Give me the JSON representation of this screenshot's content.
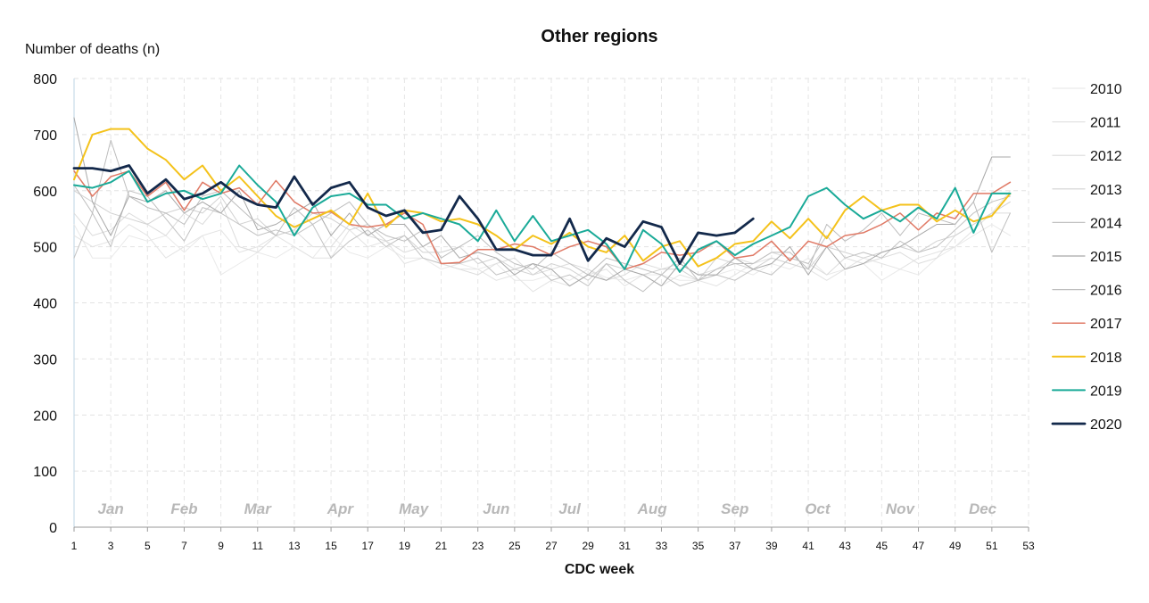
{
  "chart_data": {
    "type": "line",
    "title": "Other regions",
    "ylabel": "Number of deaths (n)",
    "xlabel": "CDC week",
    "xlim": [
      1,
      53
    ],
    "ylim": [
      0,
      800
    ],
    "x_ticks": [
      1,
      3,
      5,
      7,
      9,
      11,
      13,
      15,
      17,
      19,
      21,
      23,
      25,
      27,
      29,
      31,
      33,
      35,
      37,
      39,
      41,
      43,
      45,
      47,
      49,
      51,
      53
    ],
    "y_ticks": [
      0,
      100,
      200,
      300,
      400,
      500,
      600,
      700,
      800
    ],
    "grid": true,
    "legend_position": "right",
    "months": [
      {
        "label": "Jan",
        "week": 3
      },
      {
        "label": "Feb",
        "week": 7
      },
      {
        "label": "Mar",
        "week": 11
      },
      {
        "label": "Apr",
        "week": 15.5
      },
      {
        "label": "May",
        "week": 19.5
      },
      {
        "label": "Jun",
        "week": 24
      },
      {
        "label": "Jul",
        "week": 28
      },
      {
        "label": "Aug",
        "week": 32.5
      },
      {
        "label": "Sep",
        "week": 37
      },
      {
        "label": "Oct",
        "week": 41.5
      },
      {
        "label": "Nov",
        "week": 46
      },
      {
        "label": "Dec",
        "week": 50.5
      }
    ],
    "series": [
      {
        "name": "2010",
        "color": "#e9e9e9",
        "width": 1,
        "start_week": 1,
        "values": [
          540,
          480,
          480,
          520,
          510,
          520,
          490,
          520,
          450,
          470,
          490,
          480,
          500,
          480,
          520,
          490,
          480,
          500,
          480,
          480,
          460,
          470,
          460,
          470,
          440,
          440,
          450,
          440,
          460,
          445,
          440,
          450,
          450,
          440,
          440,
          450,
          460,
          450,
          470,
          460,
          480,
          450,
          460,
          470,
          440,
          460,
          450,
          480,
          500,
          520,
          540,
          520
        ]
      },
      {
        "name": "2011",
        "color": "#e3e3e3",
        "width": 1,
        "start_week": 1,
        "values": [
          520,
          500,
          510,
          540,
          520,
          480,
          500,
          520,
          530,
          490,
          500,
          520,
          500,
          480,
          480,
          530,
          500,
          510,
          470,
          480,
          470,
          460,
          460,
          440,
          450,
          420,
          440,
          430,
          450,
          460,
          430,
          450,
          430,
          450,
          440,
          430,
          450,
          470,
          480,
          470,
          460,
          440,
          460,
          480,
          470,
          460,
          480,
          490,
          500,
          530,
          560,
          600
        ]
      },
      {
        "name": "2012",
        "color": "#dcdcdc",
        "width": 1,
        "start_week": 1,
        "values": [
          560,
          520,
          530,
          560,
          540,
          520,
          560,
          540,
          580,
          500,
          490,
          520,
          530,
          500,
          500,
          540,
          520,
          510,
          490,
          500,
          470,
          460,
          450,
          470,
          480,
          450,
          460,
          470,
          460,
          440,
          450,
          470,
          460,
          470,
          450,
          460,
          480,
          470,
          490,
          480,
          470,
          450,
          480,
          470,
          480,
          490,
          470,
          480,
          520,
          540,
          560,
          560
        ]
      },
      {
        "name": "2013",
        "color": "#d2d2d2",
        "width": 1,
        "start_week": 1,
        "values": [
          600,
          580,
          560,
          550,
          540,
          560,
          570,
          560,
          590,
          540,
          550,
          520,
          530,
          560,
          550,
          530,
          540,
          510,
          520,
          490,
          490,
          500,
          470,
          480,
          460,
          450,
          470,
          460,
          440,
          470,
          460,
          450,
          460,
          460,
          440,
          480,
          470,
          460,
          480,
          470,
          460,
          500,
          490,
          480,
          490,
          500,
          490,
          510,
          520,
          540,
          560,
          580
        ]
      },
      {
        "name": "2014",
        "color": "#c2c2c2",
        "width": 1,
        "start_week": 1,
        "values": [
          480,
          560,
          500,
          600,
          590,
          550,
          510,
          570,
          560,
          540,
          520,
          530,
          520,
          540,
          480,
          510,
          530,
          500,
          520,
          480,
          470,
          470,
          480,
          450,
          460,
          470,
          440,
          450,
          430,
          470,
          440,
          420,
          450,
          430,
          440,
          450,
          440,
          460,
          450,
          480,
          470,
          520,
          480,
          490,
          480,
          510,
          490,
          500,
          530,
          560,
          580,
          590
        ]
      },
      {
        "name": "2015",
        "color": "#a8a8a8",
        "width": 1,
        "start_week": 1,
        "values": [
          730,
          580,
          520,
          590,
          580,
          600,
          560,
          580,
          560,
          600,
          530,
          540,
          560,
          580,
          520,
          560,
          520,
          540,
          540,
          500,
          520,
          480,
          490,
          480,
          450,
          470,
          460,
          430,
          450,
          440,
          460,
          450,
          430,
          470,
          450,
          450,
          480,
          460,
          470,
          500,
          450,
          500,
          460,
          470,
          490,
          500,
          520,
          540,
          540,
          580,
          660,
          660
        ]
      },
      {
        "name": "2016",
        "color": "#bdbdbd",
        "width": 1,
        "start_week": 1,
        "values": [
          610,
          560,
          690,
          590,
          570,
          560,
          540,
          590,
          600,
          570,
          540,
          520,
          570,
          540,
          560,
          580,
          540,
          520,
          510,
          530,
          480,
          500,
          520,
          490,
          470,
          460,
          490,
          470,
          450,
          480,
          470,
          460,
          450,
          480,
          440,
          460,
          470,
          470,
          490,
          490,
          460,
          540,
          510,
          530,
          560,
          520,
          560,
          550,
          540,
          580,
          490,
          560
        ]
      },
      {
        "name": "2017",
        "color": "#e07a66",
        "width": 1.5,
        "start_week": 1,
        "values": [
          635,
          590,
          625,
          635,
          590,
          615,
          565,
          615,
          595,
          605,
          575,
          618,
          580,
          560,
          562,
          540,
          535,
          540,
          560,
          540,
          470,
          472,
          495,
          495,
          505,
          500,
          485,
          500,
          510,
          500,
          460,
          470,
          490,
          485,
          490,
          510,
          480,
          485,
          510,
          475,
          510,
          500,
          520,
          525,
          540,
          560,
          530,
          560,
          550,
          595,
          595,
          615
        ]
      },
      {
        "name": "2018",
        "color": "#f4c21b",
        "width": 2,
        "start_week": 1,
        "values": [
          620,
          700,
          710,
          710,
          675,
          655,
          620,
          645,
          600,
          625,
          590,
          555,
          535,
          550,
          565,
          540,
          595,
          535,
          565,
          560,
          545,
          550,
          540,
          520,
          495,
          520,
          505,
          525,
          500,
          490,
          520,
          475,
          500,
          510,
          465,
          480,
          505,
          510,
          545,
          515,
          550,
          515,
          565,
          590,
          565,
          575,
          575,
          545,
          565,
          545,
          555,
          595
        ]
      },
      {
        "name": "2019",
        "color": "#1aaa98",
        "width": 2,
        "start_week": 1,
        "values": [
          610,
          605,
          615,
          635,
          580,
          595,
          600,
          585,
          595,
          645,
          610,
          580,
          520,
          570,
          590,
          595,
          575,
          575,
          550,
          560,
          550,
          540,
          510,
          565,
          510,
          555,
          510,
          520,
          530,
          505,
          460,
          530,
          505,
          455,
          495,
          510,
          485,
          505,
          520,
          535,
          590,
          605,
          575,
          550,
          565,
          545,
          570,
          550,
          605,
          525,
          595,
          595
        ]
      },
      {
        "name": "2020",
        "color": "#13294b",
        "width": 2.8,
        "start_week": 1,
        "values": [
          640,
          640,
          635,
          645,
          595,
          620,
          585,
          595,
          615,
          590,
          575,
          570,
          625,
          575,
          605,
          615,
          570,
          555,
          565,
          525,
          530,
          590,
          550,
          495,
          495,
          485,
          485,
          550,
          475,
          515,
          500,
          545,
          535,
          470,
          525,
          520,
          525,
          550
        ]
      }
    ]
  }
}
